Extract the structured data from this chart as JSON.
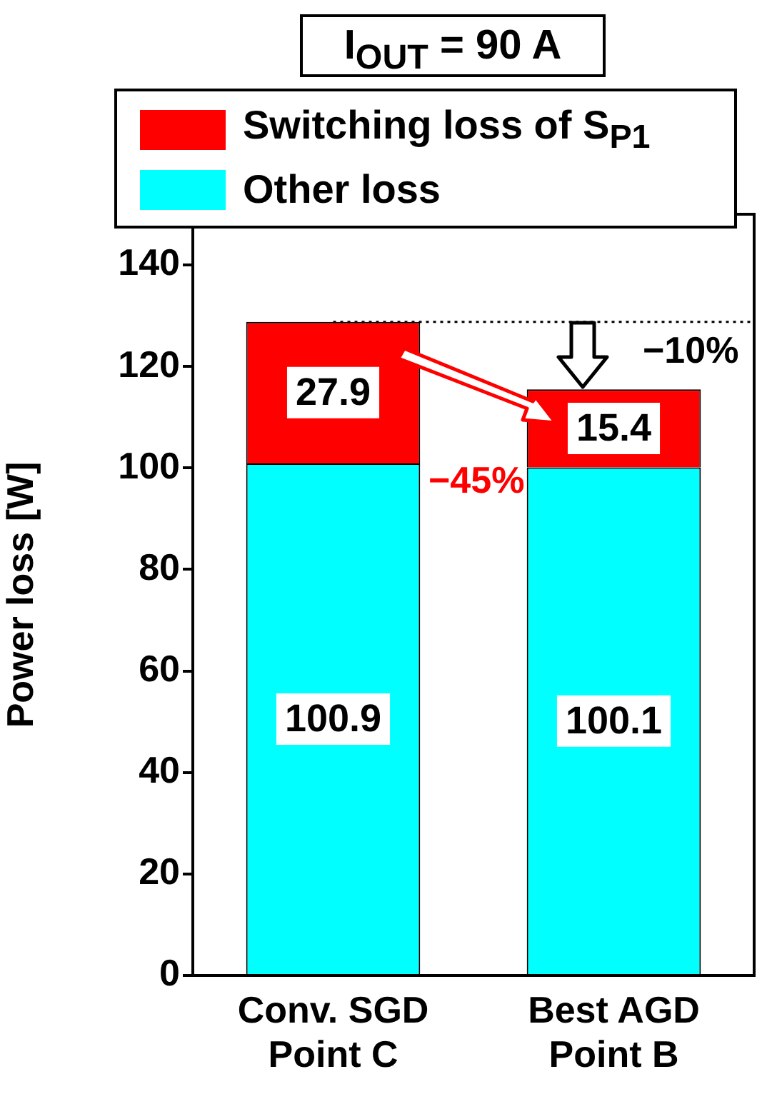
{
  "chart_data": {
    "type": "bar",
    "title": "I$_{OUT}$ = 90 A",
    "ylabel": "Power loss [W]",
    "categories": [
      "Conv. SGD\nPoint C",
      "Best AGD\nPoint B"
    ],
    "stacked": true,
    "series": [
      {
        "name": "Other loss",
        "color": "#00ffff",
        "values": [
          100.9,
          100.1
        ]
      },
      {
        "name": "Switching loss of S$_{P1}$",
        "color": "#ff0000",
        "values": [
          27.9,
          15.4
        ]
      }
    ],
    "ylim": [
      0,
      150
    ],
    "yticks": [
      0,
      20,
      40,
      60,
      80,
      100,
      120,
      140
    ],
    "grid": false,
    "legend": "top",
    "data_labels": true,
    "ref_lines": [
      {
        "axis": "y",
        "value": 128.8,
        "line_style": "dotted",
        "color": "#000000"
      }
    ],
    "annotations": [
      "−45%",
      "−10%"
    ]
  }
}
